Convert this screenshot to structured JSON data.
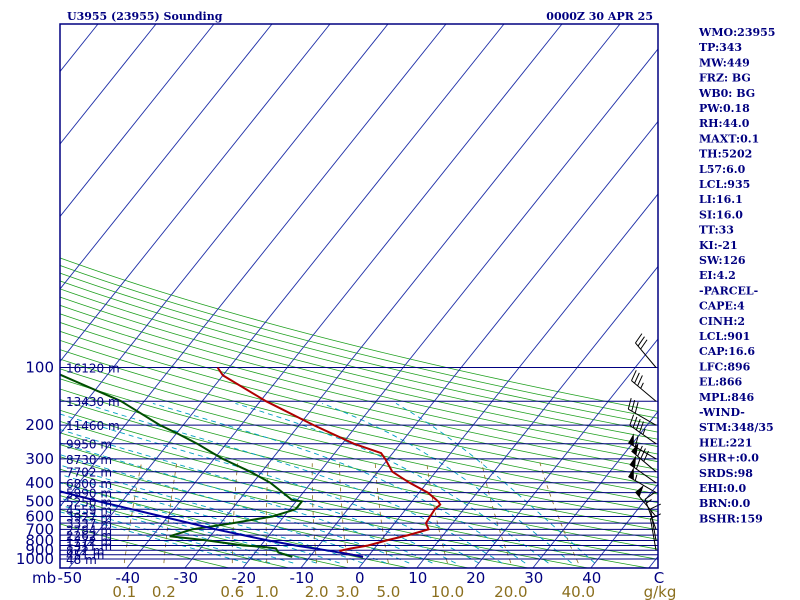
{
  "header": {
    "station": "U3955 (23955) Sounding",
    "time": "0000Z 30 APR 25"
  },
  "indices": [
    "WMO:23955",
    "TP:343",
    "MW:449",
    "FRZ: BG",
    "WB0: BG",
    "PW:0.18",
    "RH:44.0",
    "MAXT:0.1",
    "TH:5202",
    "L57:6.0",
    "LCL:935",
    "LI:16.1",
    "SI:16.0",
    "TT:33",
    "KI:-21",
    "SW:126",
    "EI:4.2",
    "-PARCEL-",
    "CAPE:4",
    "CINH:2",
    "LCL:901",
    "CAP:16.6",
    "LFC:896",
    "EL:866",
    "MPL:846",
    "-WIND-",
    "STM:348/35",
    "HEL:221",
    "SHR+:0.0",
    "SRDS:98",
    "EHI:0.0",
    "BRN:0.0",
    "BSHR:159"
  ],
  "colors": {
    "frame": "#000080",
    "isobar": "#000080",
    "isotherm": "#1f2fa8",
    "dry_adiabat": "#20a020",
    "moist_adiabat": "#00a0c0",
    "mixing_ratio": "#8b6f1e",
    "temperature": "#b00000",
    "dewpoint": "#004d00",
    "parcel": "#0000a0",
    "wind": "#000000"
  },
  "chart_data": {
    "type": "line",
    "diagram": "skew-T log-p",
    "ylabel": "mb",
    "xlabel": "C",
    "pressure_ticks": [
      100,
      200,
      300,
      400,
      500,
      600,
      700,
      800,
      900,
      1000
    ],
    "temperature_ticks": [
      "-50",
      "-40",
      "-30",
      "-20",
      "-10",
      "0",
      "10",
      "20",
      "30",
      "40"
    ],
    "temperature_unit": "C",
    "mixing_ratio_labels": [
      "0.1",
      "0.2",
      "0.6",
      "1.0",
      "2.0",
      "3.0",
      "5.0",
      "10.0",
      "20.0",
      "40.0"
    ],
    "mixing_ratio_unit": "g/kg",
    "height_labels": [
      {
        "p": 100,
        "label": "16120 m"
      },
      {
        "p": 150,
        "label": "13430 m"
      },
      {
        "p": 200,
        "label": "11460 m"
      },
      {
        "p": 250,
        "label": "9950 m"
      },
      {
        "p": 300,
        "label": "8730 m"
      },
      {
        "p": 350,
        "label": "7702 m"
      },
      {
        "p": 400,
        "label": "6800 m"
      },
      {
        "p": 450,
        "label": "5990 m"
      },
      {
        "p": 500,
        "label": "5250 m"
      },
      {
        "p": 550,
        "label": "4559 m"
      },
      {
        "p": 600,
        "label": "3927 m"
      },
      {
        "p": 650,
        "label": "3337 m"
      },
      {
        "p": 700,
        "label": "2784 m"
      },
      {
        "p": 750,
        "label": "2262 m"
      },
      {
        "p": 800,
        "label": "1772 m"
      },
      {
        "p": 850,
        "label": "1311 m"
      },
      {
        "p": 900,
        "label": "872 m"
      },
      {
        "p": 950,
        "label": "451 m"
      },
      {
        "p": 1000,
        "label": "48 m"
      }
    ],
    "series": [
      {
        "key": "temperature",
        "points": [
          [
            975,
            -0.8
          ],
          [
            950,
            -3.0
          ],
          [
            925,
            -5.2
          ],
          [
            905,
            -5.6
          ],
          [
            880,
            -4.0
          ],
          [
            850,
            -1.5
          ],
          [
            800,
            1.0
          ],
          [
            750,
            4.0
          ],
          [
            700,
            6.7
          ],
          [
            650,
            5.4
          ],
          [
            600,
            5.2
          ],
          [
            550,
            5.0
          ],
          [
            520,
            5.3
          ],
          [
            500,
            4.5
          ],
          [
            450,
            1.5
          ],
          [
            400,
            -3.0
          ],
          [
            350,
            -7.5
          ],
          [
            300,
            -10.5
          ],
          [
            280,
            -12.0
          ],
          [
            250,
            -18.0
          ],
          [
            200,
            -27.5
          ],
          [
            150,
            -39.0
          ],
          [
            110,
            -50.0
          ],
          [
            100,
            -52.0
          ]
        ]
      },
      {
        "key": "dewpoint",
        "points": [
          [
            975,
            -13.0
          ],
          [
            925,
            -16.0
          ],
          [
            880,
            -17.0
          ],
          [
            860,
            -20.0
          ],
          [
            850,
            -23.0
          ],
          [
            800,
            -30.0
          ],
          [
            760,
            -37.0
          ],
          [
            700,
            -34.0
          ],
          [
            650,
            -28.0
          ],
          [
            600,
            -22.0
          ],
          [
            550,
            -19.0
          ],
          [
            500,
            -19.0
          ],
          [
            490,
            -21.0
          ],
          [
            450,
            -23.5
          ],
          [
            400,
            -27.0
          ],
          [
            350,
            -32.0
          ],
          [
            300,
            -38.5
          ],
          [
            280,
            -41.0
          ],
          [
            250,
            -45.0
          ],
          [
            220,
            -50.0
          ],
          [
            200,
            -54.0
          ],
          [
            150,
            -64.0
          ],
          [
            100,
            -82.0
          ]
        ]
      },
      {
        "key": "parcel",
        "points": [
          [
            975,
            -0.8
          ],
          [
            950,
            -3.0
          ],
          [
            901,
            -8.0
          ],
          [
            850,
            -14.0
          ],
          [
            800,
            -19.5
          ],
          [
            700,
            -30.0
          ],
          [
            600,
            -41.0
          ],
          [
            500,
            -54.0
          ],
          [
            400,
            -69.0
          ],
          [
            300,
            -86.0
          ],
          [
            200,
            -107.0
          ],
          [
            150,
            -121.0
          ],
          [
            125,
            -130.0
          ]
        ]
      }
    ],
    "wind_barbs": [
      {
        "p": 100,
        "dir": 320,
        "kt": 30
      },
      {
        "p": 150,
        "dir": 310,
        "kt": 35
      },
      {
        "p": 200,
        "dir": 300,
        "kt": 30
      },
      {
        "p": 250,
        "dir": 305,
        "kt": 45
      },
      {
        "p": 300,
        "dir": 300,
        "kt": 60
      },
      {
        "p": 350,
        "dir": 310,
        "kt": 80
      },
      {
        "p": 400,
        "dir": 305,
        "kt": 60
      },
      {
        "p": 450,
        "dir": 300,
        "kt": 55
      },
      {
        "p": 600,
        "dir": 320,
        "kt": 50
      },
      {
        "p": 700,
        "dir": 340,
        "kt": 15
      },
      {
        "p": 800,
        "dir": 350,
        "kt": 10
      },
      {
        "p": 900,
        "dir": 350,
        "kt": 10
      }
    ]
  }
}
